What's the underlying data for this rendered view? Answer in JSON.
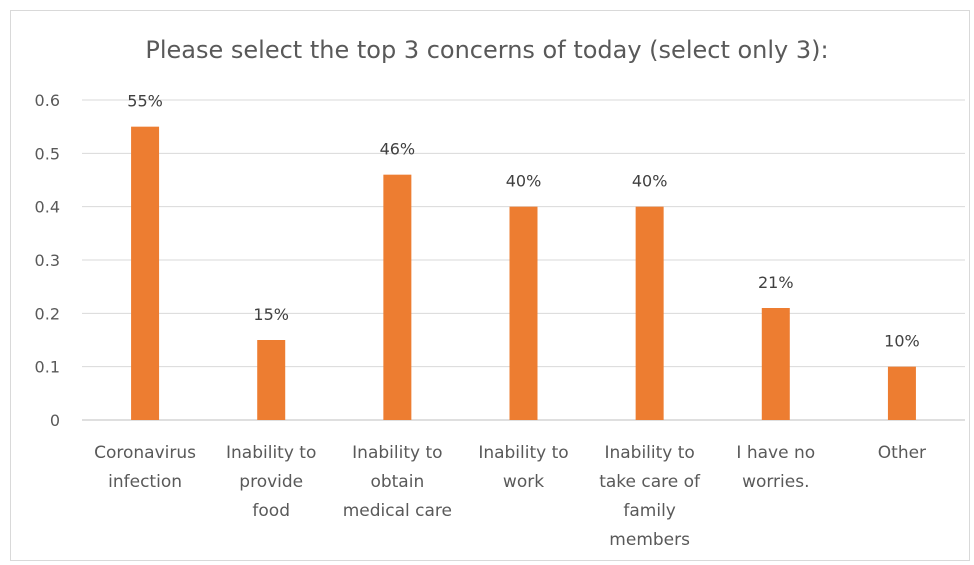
{
  "chart_data": {
    "type": "bar",
    "title": "Please select the top 3 concerns of today (select only 3):",
    "categories": [
      [
        "Coronavirus",
        "infection"
      ],
      [
        "Inability to",
        "provide",
        "food"
      ],
      [
        "Inability to",
        "obtain",
        "medical care"
      ],
      [
        "Inability to",
        "work"
      ],
      [
        "Inability to",
        "take care of",
        "family",
        "members"
      ],
      [
        "I have no",
        "worries."
      ],
      [
        "Other"
      ]
    ],
    "values": [
      0.55,
      0.15,
      0.46,
      0.4,
      0.4,
      0.21,
      0.1
    ],
    "data_labels": [
      "55%",
      "15%",
      "46%",
      "40%",
      "40%",
      "21%",
      "10%"
    ],
    "y_ticks": [
      "0",
      "0.1",
      "0.2",
      "0.3",
      "0.4",
      "0.5",
      "0.6"
    ],
    "ylim": [
      0,
      0.6
    ],
    "grid": true,
    "legend": "none",
    "colors": {
      "bar": "#ED7D31",
      "grid": "#D9D9D9",
      "axis": "#BFBFBF"
    }
  }
}
